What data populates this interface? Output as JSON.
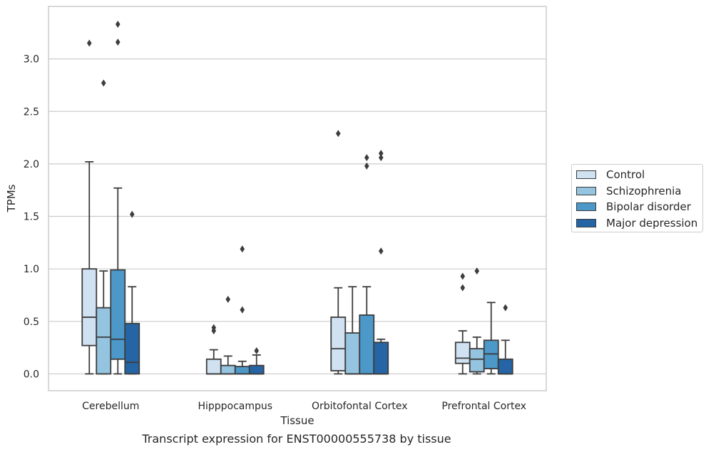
{
  "caption": "Transcript expression for ENST00000555738 by tissue",
  "chart_data": {
    "type": "box",
    "xlabel": "Tissue",
    "ylabel": "TPMs",
    "ylim": [
      -0.16,
      3.5
    ],
    "yticks": [
      "0.0",
      "0.5",
      "1.0",
      "1.5",
      "2.0",
      "2.5",
      "3.0"
    ],
    "grid": "horizontal",
    "legend_placement": "right",
    "categories": [
      "Cerebellum",
      "Hipppocampus",
      "Orbitofontal Cortex",
      "Prefrontal Cortex"
    ],
    "series": [
      {
        "name": "Control",
        "color": "#d0e1f2",
        "boxes": [
          {
            "whislo": 0.0,
            "q1": 0.27,
            "med": 0.54,
            "q3": 1.0,
            "whishi": 2.02,
            "fliers": [
              3.15
            ]
          },
          {
            "whislo": 0.0,
            "q1": 0.0,
            "med": 0.0,
            "q3": 0.14,
            "whishi": 0.23,
            "fliers": [
              0.44,
              0.41
            ]
          },
          {
            "whislo": 0.0,
            "q1": 0.03,
            "med": 0.24,
            "q3": 0.54,
            "whishi": 0.82,
            "fliers": [
              2.29
            ]
          },
          {
            "whislo": 0.0,
            "q1": 0.1,
            "med": 0.15,
            "q3": 0.3,
            "whishi": 0.41,
            "fliers": [
              0.93,
              0.82
            ]
          }
        ]
      },
      {
        "name": "Schizophrenia",
        "color": "#94c4df",
        "boxes": [
          {
            "whislo": 0.0,
            "q1": 0.0,
            "med": 0.35,
            "q3": 0.63,
            "whishi": 0.98,
            "fliers": [
              2.77
            ]
          },
          {
            "whislo": 0.0,
            "q1": 0.0,
            "med": 0.0,
            "q3": 0.08,
            "whishi": 0.17,
            "fliers": [
              0.71
            ]
          },
          {
            "whislo": 0.0,
            "q1": 0.0,
            "med": 0.0,
            "q3": 0.39,
            "whishi": 0.83,
            "fliers": []
          },
          {
            "whislo": 0.0,
            "q1": 0.02,
            "med": 0.14,
            "q3": 0.24,
            "whishi": 0.35,
            "fliers": [
              0.98
            ]
          }
        ]
      },
      {
        "name": "Bipolar disorder",
        "color": "#4b98c9",
        "boxes": [
          {
            "whislo": 0.0,
            "q1": 0.14,
            "med": 0.33,
            "q3": 0.99,
            "whishi": 1.77,
            "fliers": [
              3.33,
              3.16
            ]
          },
          {
            "whislo": 0.0,
            "q1": 0.0,
            "med": 0.0,
            "q3": 0.07,
            "whishi": 0.12,
            "fliers": [
              1.19,
              0.61
            ]
          },
          {
            "whislo": 0.0,
            "q1": 0.0,
            "med": 0.0,
            "q3": 0.56,
            "whishi": 0.83,
            "fliers": [
              2.06,
              1.98
            ]
          },
          {
            "whislo": 0.0,
            "q1": 0.05,
            "med": 0.19,
            "q3": 0.32,
            "whishi": 0.68,
            "fliers": []
          }
        ]
      },
      {
        "name": "Major depression",
        "color": "#2565a6",
        "boxes": [
          {
            "whislo": 0.0,
            "q1": 0.0,
            "med": 0.11,
            "q3": 0.48,
            "whishi": 0.83,
            "fliers": [
              1.52
            ]
          },
          {
            "whislo": 0.0,
            "q1": 0.0,
            "med": 0.0,
            "q3": 0.08,
            "whishi": 0.18,
            "fliers": [
              0.22
            ]
          },
          {
            "whislo": 0.0,
            "q1": 0.0,
            "med": 0.0,
            "q3": 0.3,
            "whishi": 0.33,
            "fliers": [
              2.1,
              2.06,
              1.17
            ]
          },
          {
            "whislo": 0.0,
            "q1": 0.0,
            "med": 0.0,
            "q3": 0.14,
            "whishi": 0.32,
            "fliers": [
              0.63
            ]
          }
        ]
      }
    ]
  }
}
